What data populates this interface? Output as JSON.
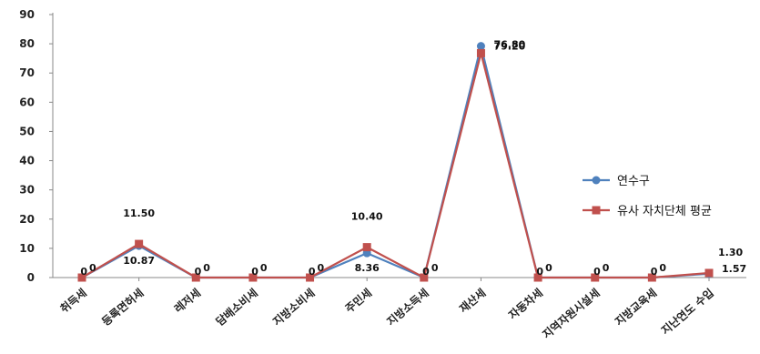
{
  "chart_data": {
    "type": "line",
    "ylim": [
      0,
      90
    ],
    "yticks": [
      0,
      10,
      20,
      30,
      40,
      50,
      60,
      70,
      80,
      90
    ],
    "grid": false,
    "legend_position": "right",
    "categories": [
      "취득세",
      "등록면허세",
      "레저세",
      "담배소비세",
      "지방소비세",
      "주민세",
      "지방소득세",
      "재산세",
      "자동차세",
      "지역자원시설세",
      "지방교육세",
      "지난연도 수입"
    ],
    "series": [
      {
        "name": "연수구",
        "color": "#4f81bd",
        "marker": "circle",
        "values": [
          0,
          10.87,
          0,
          0,
          0,
          8.36,
          0,
          79.2,
          0,
          0,
          0,
          1.3
        ],
        "labels": [
          "0",
          "10.87",
          "0",
          "0",
          "0",
          "8.36",
          "0",
          "79.20",
          "0",
          "0",
          "0",
          "1.30"
        ]
      },
      {
        "name": "유사 자치단체 평균",
        "color": "#c0504d",
        "marker": "square",
        "values": [
          0,
          11.5,
          0,
          0,
          0,
          10.4,
          0,
          76.8,
          0,
          0,
          0,
          1.57
        ],
        "labels": [
          "0",
          "11.50",
          "0",
          "0",
          "0",
          "10.40",
          "0",
          "76.80",
          "0",
          "0",
          "0",
          "1.57"
        ]
      }
    ]
  }
}
